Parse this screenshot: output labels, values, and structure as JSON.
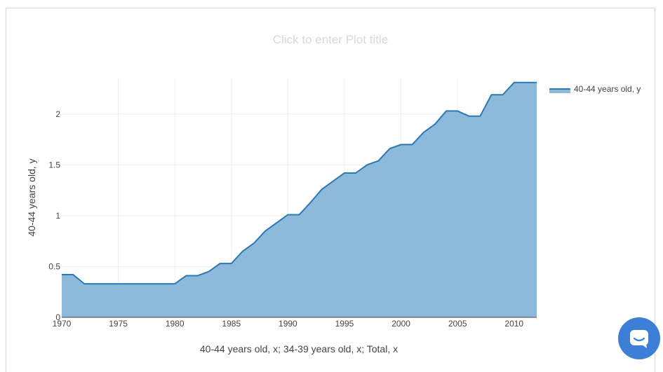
{
  "colors": {
    "fill": "#8db9db",
    "line": "#2b79b4",
    "grid": "#eeeeee",
    "axis": "#444444",
    "chat_button": "#3d7fd6"
  },
  "chat_icon": "chat-bubble-icon",
  "chart_data": {
    "type": "area",
    "title": "Click to enter Plot title",
    "xlabel": "40-44 years old, x; 34-39 years old, x; Total, x",
    "ylabel": "40-44 years old, y",
    "xlim": [
      1970,
      2012
    ],
    "ylim": [
      0,
      2.35
    ],
    "x_ticks": [
      1970,
      1975,
      1980,
      1985,
      1990,
      1995,
      2000,
      2005,
      2010
    ],
    "y_ticks": [
      0,
      0.5,
      1,
      1.5,
      2
    ],
    "y_tick_labels": [
      "0",
      "0.5",
      "1",
      "1.5",
      "2"
    ],
    "grid": true,
    "legend_position": "top-right",
    "series": [
      {
        "name": "40-44 years old, y",
        "x": [
          1970,
          1971,
          1972,
          1973,
          1974,
          1975,
          1976,
          1977,
          1978,
          1979,
          1980,
          1981,
          1982,
          1983,
          1984,
          1985,
          1986,
          1987,
          1988,
          1989,
          1990,
          1991,
          1992,
          1993,
          1994,
          1995,
          1996,
          1997,
          1998,
          1999,
          2000,
          2001,
          2002,
          2003,
          2004,
          2005,
          2006,
          2007,
          2008,
          2009,
          2010,
          2011,
          2012
        ],
        "y": [
          0.42,
          0.42,
          0.33,
          0.33,
          0.33,
          0.33,
          0.33,
          0.33,
          0.33,
          0.33,
          0.33,
          0.41,
          0.41,
          0.45,
          0.53,
          0.53,
          0.65,
          0.73,
          0.85,
          0.93,
          1.01,
          1.01,
          1.13,
          1.26,
          1.34,
          1.42,
          1.42,
          1.5,
          1.54,
          1.66,
          1.7,
          1.7,
          1.82,
          1.9,
          2.03,
          2.03,
          1.98,
          1.98,
          2.19,
          2.19,
          2.31,
          2.31,
          2.31
        ]
      }
    ]
  }
}
